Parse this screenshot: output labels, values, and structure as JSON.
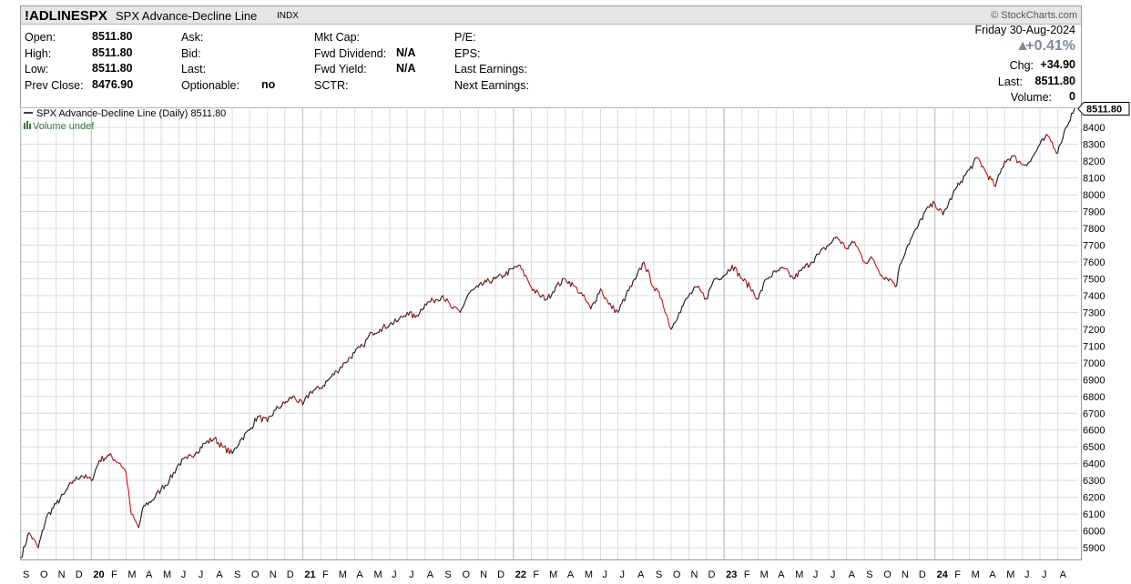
{
  "header": {
    "symbol": "!ADLINESPX",
    "name": "SPX Advance-Decline Line",
    "exchange": "INDX",
    "brand": "© StockCharts.com",
    "date": "Friday  30-Aug-2024",
    "change_pct": "+0.41%",
    "change_arrow": "▲"
  },
  "quote": {
    "open_label": "Open:",
    "open": "8511.80",
    "high_label": "High:",
    "high": "8511.80",
    "low_label": "Low:",
    "low": "8511.80",
    "prev_close_label": "Prev Close:",
    "prev_close": "8476.90",
    "ask_label": "Ask:",
    "bid_label": "Bid:",
    "last_label_mid": "Last:",
    "optionable_label": "Optionable:",
    "optionable": "no",
    "mkt_cap_label": "Mkt Cap:",
    "fwd_div_label": "Fwd Dividend:",
    "fwd_div": "N/A",
    "fwd_yield_label": "Fwd Yield:",
    "fwd_yield": "N/A",
    "sctr_label": "SCTR:",
    "pe_label": "P/E:",
    "eps_label": "EPS:",
    "last_earn_label": "Last Earnings:",
    "next_earn_label": "Next Earnings:",
    "chg_label": "Chg:",
    "chg": "+34.90",
    "last_label": "Last:",
    "last": "8511.80",
    "volume_label": "Volume:",
    "volume": "0"
  },
  "chart_data": {
    "type": "line",
    "legend": [
      "SPX Advance-Decline Line (Daily) 8511.80",
      "Volume undef"
    ],
    "last_value_label": "8511.80",
    "ylim": [
      5830,
      8520
    ],
    "y_ticks": [
      5900,
      6000,
      6100,
      6200,
      6300,
      6400,
      6500,
      6600,
      6700,
      6800,
      6900,
      7000,
      7100,
      7200,
      7300,
      7400,
      7500,
      7600,
      7700,
      7800,
      7900,
      8000,
      8100,
      8200,
      8300,
      8400
    ],
    "x_start": "2019-09",
    "x_end": "2024-08-30",
    "x_tick_labels": [
      "S",
      "O",
      "N",
      "D",
      "20",
      "F",
      "M",
      "A",
      "M",
      "J",
      "J",
      "A",
      "S",
      "O",
      "N",
      "D",
      "21",
      "F",
      "M",
      "A",
      "M",
      "J",
      "J",
      "A",
      "S",
      "O",
      "N",
      "D",
      "22",
      "F",
      "M",
      "A",
      "M",
      "J",
      "J",
      "A",
      "S",
      "O",
      "N",
      "D",
      "23",
      "F",
      "M",
      "A",
      "M",
      "J",
      "J",
      "A",
      "S",
      "O",
      "N",
      "D",
      "24",
      "F",
      "M",
      "A",
      "M",
      "J",
      "J",
      "A"
    ],
    "series": [
      {
        "x": [
          "2019-09-01",
          "2019-09-15",
          "2019-10-01",
          "2019-10-15",
          "2019-11-01",
          "2019-11-15",
          "2019-12-01",
          "2019-12-15",
          "2020-01-01",
          "2020-01-15",
          "2020-02-01",
          "2020-02-20",
          "2020-03-01",
          "2020-03-10",
          "2020-03-23",
          "2020-04-01",
          "2020-04-15",
          "2020-05-01",
          "2020-05-15",
          "2020-06-01",
          "2020-06-15",
          "2020-07-01",
          "2020-07-15",
          "2020-08-01",
          "2020-08-15",
          "2020-09-01",
          "2020-09-15",
          "2020-10-01",
          "2020-10-15",
          "2020-11-01",
          "2020-11-15",
          "2020-12-01",
          "2020-12-15",
          "2021-01-01",
          "2021-01-15",
          "2021-02-01",
          "2021-02-15",
          "2021-03-01",
          "2021-03-15",
          "2021-04-01",
          "2021-04-15",
          "2021-05-01",
          "2021-05-15",
          "2021-06-01",
          "2021-06-15",
          "2021-07-01",
          "2021-07-15",
          "2021-08-01",
          "2021-08-15",
          "2021-09-01",
          "2021-09-15",
          "2021-10-01",
          "2021-10-15",
          "2021-11-01",
          "2021-11-15",
          "2021-12-01",
          "2021-12-15",
          "2022-01-01",
          "2022-01-10",
          "2022-01-25",
          "2022-02-01",
          "2022-02-15",
          "2022-03-01",
          "2022-03-15",
          "2022-04-01",
          "2022-04-15",
          "2022-05-01",
          "2022-05-15",
          "2022-06-01",
          "2022-06-15",
          "2022-07-01",
          "2022-07-15",
          "2022-08-01",
          "2022-08-15",
          "2022-09-01",
          "2022-09-15",
          "2022-10-01",
          "2022-10-15",
          "2022-11-01",
          "2022-11-15",
          "2022-12-01",
          "2022-12-15",
          "2023-01-01",
          "2023-01-15",
          "2023-02-01",
          "2023-02-15",
          "2023-03-01",
          "2023-03-15",
          "2023-04-01",
          "2023-04-15",
          "2023-05-01",
          "2023-05-15",
          "2023-06-01",
          "2023-06-15",
          "2023-07-01",
          "2023-07-15",
          "2023-08-01",
          "2023-08-15",
          "2023-09-01",
          "2023-09-15",
          "2023-10-01",
          "2023-10-15",
          "2023-10-27",
          "2023-11-01",
          "2023-11-15",
          "2023-12-01",
          "2023-12-15",
          "2024-01-01",
          "2024-01-15",
          "2024-02-01",
          "2024-02-15",
          "2024-03-01",
          "2024-03-15",
          "2024-04-01",
          "2024-04-15",
          "2024-05-01",
          "2024-05-15",
          "2024-06-01",
          "2024-06-15",
          "2024-07-01",
          "2024-07-15",
          "2024-08-01",
          "2024-08-05",
          "2024-08-15",
          "2024-08-30"
        ],
        "y": [
          5840,
          5990,
          5900,
          6080,
          6160,
          6220,
          6300,
          6330,
          6300,
          6420,
          6450,
          6400,
          6350,
          6100,
          6020,
          6150,
          6180,
          6250,
          6300,
          6400,
          6430,
          6470,
          6520,
          6550,
          6500,
          6460,
          6540,
          6600,
          6680,
          6650,
          6720,
          6760,
          6800,
          6750,
          6830,
          6850,
          6900,
          6950,
          7000,
          7060,
          7100,
          7180,
          7200,
          7230,
          7250,
          7300,
          7270,
          7350,
          7370,
          7400,
          7330,
          7300,
          7410,
          7450,
          7480,
          7500,
          7520,
          7560,
          7580,
          7500,
          7450,
          7400,
          7380,
          7450,
          7500,
          7460,
          7400,
          7320,
          7440,
          7350,
          7300,
          7400,
          7500,
          7600,
          7450,
          7380,
          7200,
          7300,
          7400,
          7450,
          7380,
          7500,
          7520,
          7580,
          7500,
          7450,
          7380,
          7500,
          7540,
          7560,
          7500,
          7550,
          7600,
          7650,
          7700,
          7750,
          7680,
          7720,
          7600,
          7620,
          7520,
          7500,
          7460,
          7580,
          7700,
          7800,
          7900,
          7950,
          7880,
          8000,
          8080,
          8150,
          8220,
          8120,
          8050,
          8200,
          8230,
          8180,
          8200,
          8300,
          8350,
          8250,
          8300,
          8400,
          8511.8
        ]
      }
    ]
  },
  "colors": {
    "line_down": "#c81414",
    "line_up": "#1a1a1a",
    "grid": "#dcdcdc",
    "volume_legend": "#3a7a3a"
  }
}
